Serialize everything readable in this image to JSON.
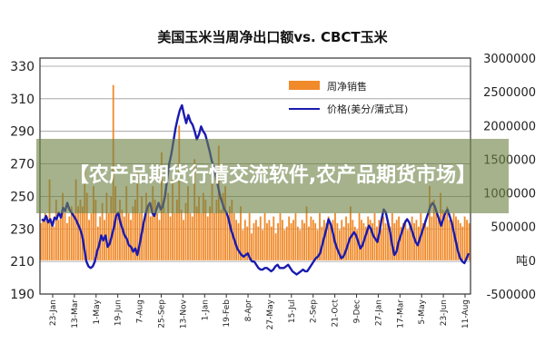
{
  "overlay": {
    "text": "【农产品期货行情交流软件,农产品期货市场】"
  },
  "colors": {
    "bar": "#f08a2a",
    "line": "#1a1ab0"
  },
  "chart_data": {
    "type": "bar+line",
    "title": "美国玉米当周净出口额vs. CBCT玉米",
    "legend": {
      "placement": "top-right",
      "entries": [
        "周净销售",
        "价格(美分/蒲式耳)"
      ]
    },
    "left_axis": {
      "ticks": [
        "190",
        "210",
        "230",
        "250",
        "270",
        "290",
        "310",
        "330"
      ],
      "ylim": [
        190,
        335
      ]
    },
    "right_axis": {
      "ticks": [
        "-500000",
        "0",
        "500000",
        "1000000",
        "1500000",
        "2000000",
        "2500000",
        "3000000"
      ],
      "ylim": [
        -500000,
        3000000
      ],
      "unit": "吨"
    },
    "grid": true,
    "x_ticks": [
      "23-Jan",
      "13-Mar",
      "1-May",
      "19-Jun",
      "7-Aug",
      "25-Sep",
      "13-Nov",
      "1-Jan",
      "19-Feb",
      "8-Apr",
      "27-May",
      "15-Jul",
      "2-Sep",
      "21-Oct",
      "9-Dec",
      "27-Jan",
      "17-Mar",
      "5-May",
      "23-Jun",
      "11-Aug"
    ],
    "series": [
      {
        "name": "周净销售",
        "type": "bar",
        "axis": "right",
        "values": [
          550000,
          600000,
          700000,
          650000,
          1200000,
          550000,
          500000,
          900000,
          600000,
          650000,
          1000000,
          700000,
          550000,
          650000,
          800000,
          700000,
          1200000,
          800000,
          900000,
          800000,
          1400000,
          1000000,
          600000,
          700000,
          1100000,
          900000,
          500000,
          650000,
          850000,
          600000,
          1000000,
          700000,
          950000,
          2600000,
          1100000,
          700000,
          900000,
          750000,
          650000,
          1100000,
          700000,
          600000,
          800000,
          900000,
          1300000,
          700000,
          950000,
          600000,
          1000000,
          800000,
          650000,
          1100000,
          900000,
          700000,
          600000,
          1600000,
          800000,
          700000,
          1000000,
          650000,
          1200000,
          700000,
          900000,
          2000000,
          750000,
          600000,
          850000,
          1100000,
          700000,
          650000,
          1500000,
          800000,
          950000,
          700000,
          1000000,
          900000,
          650000,
          800000,
          1200000,
          700000,
          900000,
          1700000,
          750000,
          1000000,
          1100000,
          650000,
          800000,
          900000,
          700000,
          600000,
          550000,
          800000,
          450000,
          600000,
          500000,
          700000,
          400000,
          550000,
          600000,
          500000,
          650000,
          450000,
          700000,
          550000,
          600000,
          500000,
          650000,
          400000,
          550000,
          700000,
          600000,
          450000,
          500000,
          650000,
          550000,
          600000,
          700000,
          500000,
          450000,
          600000,
          550000,
          800000,
          500000,
          650000,
          600000,
          550000,
          450000,
          700000,
          500000,
          600000,
          550000,
          650000,
          500000,
          600000,
          700000,
          550000,
          450000,
          600000,
          500000,
          650000,
          550000,
          800000,
          600000,
          500000,
          450000,
          700000,
          600000,
          550000,
          500000,
          650000,
          600000,
          550000,
          700000,
          500000,
          600000,
          450000,
          650000,
          550000,
          600000,
          500000,
          700000,
          550000,
          600000,
          650000,
          500000,
          550000,
          600000,
          450000,
          500000,
          650000,
          550000,
          600000,
          500000,
          700000,
          550000,
          600000,
          500000,
          1100000,
          650000,
          900000,
          700000,
          600000,
          1000000,
          750000,
          650000,
          800000,
          600000,
          550000,
          700000,
          650000,
          600000,
          550000,
          500000,
          650000,
          600000,
          550000
        ]
      },
      {
        "name": "价格(美分/蒲式耳)",
        "type": "line",
        "axis": "left",
        "values": [
          236,
          235,
          238,
          234,
          236,
          232,
          237,
          236,
          240,
          237,
          243,
          241,
          246,
          242,
          240,
          238,
          236,
          233,
          230,
          226,
          218,
          210,
          207,
          206,
          207,
          210,
          216,
          220,
          226,
          223,
          226,
          219,
          221,
          226,
          231,
          238,
          240,
          234,
          230,
          226,
          224,
          220,
          219,
          216,
          218,
          214,
          220,
          227,
          234,
          240,
          244,
          246,
          240,
          238,
          242,
          246,
          242,
          244,
          250,
          260,
          270,
          276,
          284,
          292,
          298,
          303,
          306,
          300,
          295,
          300,
          296,
          294,
          290,
          285,
          288,
          293,
          290,
          288,
          283,
          278,
          272,
          268,
          262,
          256,
          250,
          246,
          242,
          240,
          236,
          230,
          226,
          222,
          218,
          216,
          214,
          213,
          214,
          215,
          212,
          210,
          210,
          208,
          206,
          205,
          205,
          206,
          206,
          205,
          204,
          205,
          207,
          208,
          206,
          206,
          206,
          207,
          208,
          206,
          204,
          203,
          202,
          203,
          204,
          205,
          204,
          204,
          206,
          208,
          210,
          212,
          213,
          215,
          220,
          225,
          230,
          236,
          233,
          228,
          222,
          218,
          215,
          212,
          213,
          216,
          220,
          224,
          226,
          228,
          226,
          222,
          218,
          220,
          224,
          228,
          232,
          230,
          226,
          224,
          222,
          228,
          236,
          242,
          240,
          234,
          228,
          220,
          214,
          216,
          222,
          226,
          230,
          234,
          236,
          234,
          230,
          226,
          222,
          220,
          224,
          228,
          232,
          236,
          240,
          244,
          246,
          244,
          240,
          236,
          232,
          236,
          240,
          242,
          238,
          234,
          228,
          222,
          216,
          212,
          210,
          209,
          212,
          215
        ]
      }
    ]
  }
}
